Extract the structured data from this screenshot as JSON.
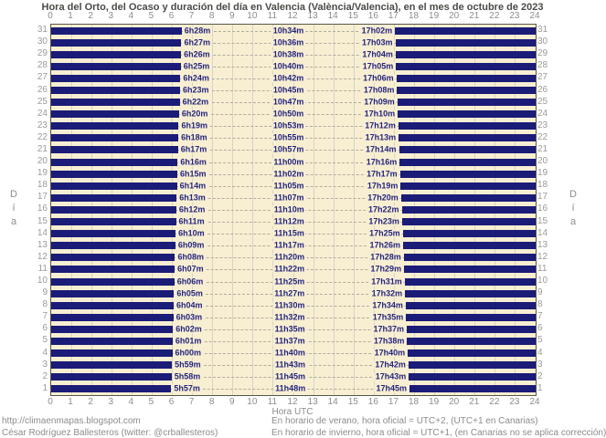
{
  "title": "Hora del Orto, del Ocaso y duración del día en Valencia (València/Valencia), en el mes de octubre de 2023",
  "axis": {
    "xlabel": "Hora UTC",
    "ylabel_vertical": "D\ní\na"
  },
  "footer": {
    "url": "http://climaenmapas.blogspot.com",
    "author": "César Rodríguez Ballesteros (twitter: @crballesteros)",
    "summer_note": "En horario de verano, hora oficial = UTC+2, (UTC+1 en Canarias)",
    "winter_note": "En horario de invierno, hora oficial = UTC+1, (en Canarias no se aplica corrección)"
  },
  "colors": {
    "bar_navy": "#1b1b78",
    "plot_cream": "#f8efd2",
    "gridline": "#d6d4c8",
    "label_navy": "#24247e",
    "tick_gray": "#8c8c8c",
    "day_number_gray": "#9a9a9a",
    "title_gray": "#4a4a46"
  },
  "chart_data": {
    "type": "bar",
    "subtype": "horizontal-daynight-range",
    "title": "Hora del Orto, del Ocaso y duración del día en Valencia (València/Valencia), en el mes de octubre de 2023",
    "xlabel": "Hora UTC",
    "ylabel": "Día",
    "xlim": [
      0,
      24
    ],
    "x_ticks": [
      0,
      1,
      2,
      3,
      4,
      5,
      6,
      7,
      8,
      9,
      10,
      11,
      12,
      13,
      14,
      15,
      16,
      17,
      18,
      19,
      20,
      21,
      22,
      23,
      24
    ],
    "grid": true,
    "legend": false,
    "rows": [
      {
        "day": 31,
        "sunrise": "6h28m",
        "day_length": "10h34m",
        "sunset": "17h02m"
      },
      {
        "day": 30,
        "sunrise": "6h27m",
        "day_length": "10h36m",
        "sunset": "17h03m"
      },
      {
        "day": 29,
        "sunrise": "6h26m",
        "day_length": "10h38m",
        "sunset": "17h04m"
      },
      {
        "day": 28,
        "sunrise": "6h25m",
        "day_length": "10h40m",
        "sunset": "17h05m"
      },
      {
        "day": 27,
        "sunrise": "6h24m",
        "day_length": "10h42m",
        "sunset": "17h06m"
      },
      {
        "day": 26,
        "sunrise": "6h23m",
        "day_length": "10h45m",
        "sunset": "17h08m"
      },
      {
        "day": 25,
        "sunrise": "6h22m",
        "day_length": "10h47m",
        "sunset": "17h09m"
      },
      {
        "day": 24,
        "sunrise": "6h20m",
        "day_length": "10h50m",
        "sunset": "17h10m"
      },
      {
        "day": 23,
        "sunrise": "6h19m",
        "day_length": "10h53m",
        "sunset": "17h12m"
      },
      {
        "day": 22,
        "sunrise": "6h18m",
        "day_length": "10h55m",
        "sunset": "17h13m"
      },
      {
        "day": 21,
        "sunrise": "6h17m",
        "day_length": "10h57m",
        "sunset": "17h14m"
      },
      {
        "day": 20,
        "sunrise": "6h16m",
        "day_length": "11h00m",
        "sunset": "17h16m"
      },
      {
        "day": 19,
        "sunrise": "6h15m",
        "day_length": "11h02m",
        "sunset": "17h17m"
      },
      {
        "day": 18,
        "sunrise": "6h14m",
        "day_length": "11h05m",
        "sunset": "17h19m"
      },
      {
        "day": 17,
        "sunrise": "6h13m",
        "day_length": "11h07m",
        "sunset": "17h20m"
      },
      {
        "day": 16,
        "sunrise": "6h12m",
        "day_length": "11h10m",
        "sunset": "17h22m"
      },
      {
        "day": 15,
        "sunrise": "6h11m",
        "day_length": "11h12m",
        "sunset": "17h23m"
      },
      {
        "day": 14,
        "sunrise": "6h10m",
        "day_length": "11h15m",
        "sunset": "17h25m"
      },
      {
        "day": 13,
        "sunrise": "6h09m",
        "day_length": "11h17m",
        "sunset": "17h26m"
      },
      {
        "day": 12,
        "sunrise": "6h08m",
        "day_length": "11h20m",
        "sunset": "17h28m"
      },
      {
        "day": 11,
        "sunrise": "6h07m",
        "day_length": "11h22m",
        "sunset": "17h29m"
      },
      {
        "day": 10,
        "sunrise": "6h06m",
        "day_length": "11h25m",
        "sunset": "17h31m"
      },
      {
        "day": 9,
        "sunrise": "6h05m",
        "day_length": "11h27m",
        "sunset": "17h32m"
      },
      {
        "day": 8,
        "sunrise": "6h04m",
        "day_length": "11h30m",
        "sunset": "17h34m"
      },
      {
        "day": 7,
        "sunrise": "6h03m",
        "day_length": "11h32m",
        "sunset": "17h35m"
      },
      {
        "day": 6,
        "sunrise": "6h02m",
        "day_length": "11h35m",
        "sunset": "17h37m"
      },
      {
        "day": 5,
        "sunrise": "6h01m",
        "day_length": "11h37m",
        "sunset": "17h38m"
      },
      {
        "day": 4,
        "sunrise": "6h00m",
        "day_length": "11h40m",
        "sunset": "17h40m"
      },
      {
        "day": 3,
        "sunrise": "5h59m",
        "day_length": "11h43m",
        "sunset": "17h42m"
      },
      {
        "day": 2,
        "sunrise": "5h58m",
        "day_length": "11h45m",
        "sunset": "17h43m"
      },
      {
        "day": 1,
        "sunrise": "5h57m",
        "day_length": "11h48m",
        "sunset": "17h45m"
      }
    ]
  }
}
